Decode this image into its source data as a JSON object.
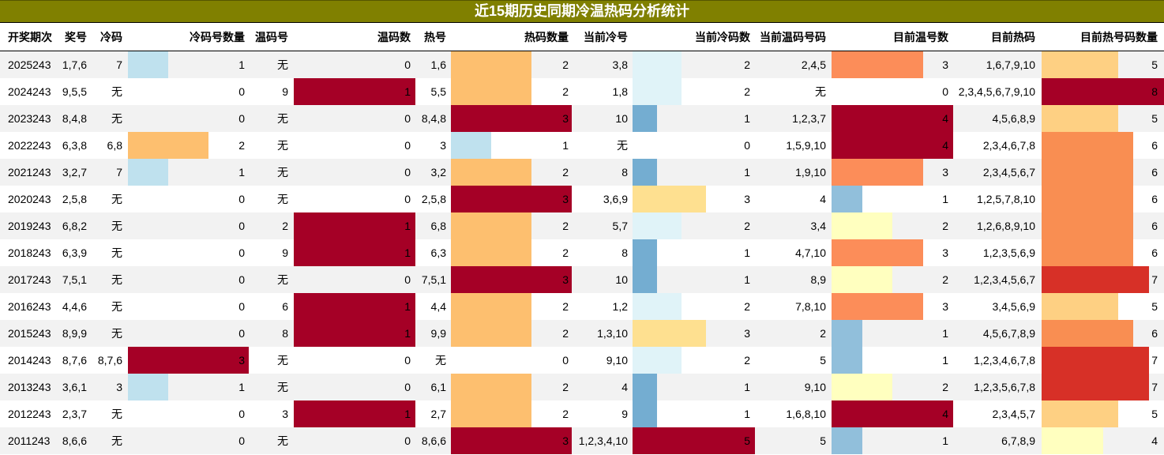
{
  "title": "近15期历史同期冷温热码分析统计",
  "headers": [
    "开奖期次",
    "奖号",
    "冷码",
    "冷码号数量",
    "温码号",
    "温码数",
    "热号",
    "热码数量",
    "当前冷号",
    "当前冷码数",
    "当前温码号码",
    "目前温号数",
    "目前热码",
    "目前热号码数量"
  ],
  "colors": {
    "title_bg": "#808000",
    "cold": [
      "#ffffff",
      "#bfe1ee",
      "#fdbf6f",
      "#a50026"
    ],
    "warm": [
      "#ffffff",
      "#a50026"
    ],
    "hot": [
      "#ffffff",
      "#bfe1ee",
      "#fdbf6f",
      "#a50026"
    ],
    "cur_cold": [
      "#ffffff",
      "#74add1",
      "#e0f3f8",
      "#fee090",
      "#ffffbf",
      "#a50026"
    ],
    "cur_warm": [
      "#ffffff",
      "#91bfdb",
      "#ffffbf",
      "#fc8d59",
      "#a50026"
    ],
    "cur_hot": [
      "#ffffff",
      "#ffffff",
      "#ffffff",
      "#ffffff",
      "#ffffbf",
      "#fed083",
      "#f98e52",
      "#d73027",
      "#a50026"
    ]
  },
  "rows": [
    {
      "period": "2025243",
      "nums": "1,7,6",
      "cold": "7",
      "cold_n": "1",
      "warm": "无",
      "warm_n": "0",
      "hot": "1,6",
      "hot_n": "2",
      "cur_cold": "3,8",
      "cur_cold_n": "2",
      "cur_warm": "2,4,5",
      "cur_warm_n": "3",
      "cur_hot": "1,6,7,9,10",
      "cur_hot_n": "5"
    },
    {
      "period": "2024243",
      "nums": "9,5,5",
      "cold": "无",
      "cold_n": "0",
      "warm": "9",
      "warm_n": "1",
      "hot": "5,5",
      "hot_n": "2",
      "cur_cold": "1,8",
      "cur_cold_n": "2",
      "cur_warm": "无",
      "cur_warm_n": "0",
      "cur_hot": "2,3,4,5,6,7,9,10",
      "cur_hot_n": "8"
    },
    {
      "period": "2023243",
      "nums": "8,4,8",
      "cold": "无",
      "cold_n": "0",
      "warm": "无",
      "warm_n": "0",
      "hot": "8,4,8",
      "hot_n": "3",
      "cur_cold": "10",
      "cur_cold_n": "1",
      "cur_warm": "1,2,3,7",
      "cur_warm_n": "4",
      "cur_hot": "4,5,6,8,9",
      "cur_hot_n": "5"
    },
    {
      "period": "2022243",
      "nums": "6,3,8",
      "cold": "6,8",
      "cold_n": "2",
      "warm": "无",
      "warm_n": "0",
      "hot": "3",
      "hot_n": "1",
      "cur_cold": "无",
      "cur_cold_n": "0",
      "cur_warm": "1,5,9,10",
      "cur_warm_n": "4",
      "cur_hot": "2,3,4,6,7,8",
      "cur_hot_n": "6"
    },
    {
      "period": "2021243",
      "nums": "3,2,7",
      "cold": "7",
      "cold_n": "1",
      "warm": "无",
      "warm_n": "0",
      "hot": "3,2",
      "hot_n": "2",
      "cur_cold": "8",
      "cur_cold_n": "1",
      "cur_warm": "1,9,10",
      "cur_warm_n": "3",
      "cur_hot": "2,3,4,5,6,7",
      "cur_hot_n": "6"
    },
    {
      "period": "2020243",
      "nums": "2,5,8",
      "cold": "无",
      "cold_n": "0",
      "warm": "无",
      "warm_n": "0",
      "hot": "2,5,8",
      "hot_n": "3",
      "cur_cold": "3,6,9",
      "cur_cold_n": "3",
      "cur_warm": "4",
      "cur_warm_n": "1",
      "cur_hot": "1,2,5,7,8,10",
      "cur_hot_n": "6"
    },
    {
      "period": "2019243",
      "nums": "6,8,2",
      "cold": "无",
      "cold_n": "0",
      "warm": "2",
      "warm_n": "1",
      "hot": "6,8",
      "hot_n": "2",
      "cur_cold": "5,7",
      "cur_cold_n": "2",
      "cur_warm": "3,4",
      "cur_warm_n": "2",
      "cur_hot": "1,2,6,8,9,10",
      "cur_hot_n": "6"
    },
    {
      "period": "2018243",
      "nums": "6,3,9",
      "cold": "无",
      "cold_n": "0",
      "warm": "9",
      "warm_n": "1",
      "hot": "6,3",
      "hot_n": "2",
      "cur_cold": "8",
      "cur_cold_n": "1",
      "cur_warm": "4,7,10",
      "cur_warm_n": "3",
      "cur_hot": "1,2,3,5,6,9",
      "cur_hot_n": "6"
    },
    {
      "period": "2017243",
      "nums": "7,5,1",
      "cold": "无",
      "cold_n": "0",
      "warm": "无",
      "warm_n": "0",
      "hot": "7,5,1",
      "hot_n": "3",
      "cur_cold": "10",
      "cur_cold_n": "1",
      "cur_warm": "8,9",
      "cur_warm_n": "2",
      "cur_hot": "1,2,3,4,5,6,7",
      "cur_hot_n": "7"
    },
    {
      "period": "2016243",
      "nums": "4,4,6",
      "cold": "无",
      "cold_n": "0",
      "warm": "6",
      "warm_n": "1",
      "hot": "4,4",
      "hot_n": "2",
      "cur_cold": "1,2",
      "cur_cold_n": "2",
      "cur_warm": "7,8,10",
      "cur_warm_n": "3",
      "cur_hot": "3,4,5,6,9",
      "cur_hot_n": "5"
    },
    {
      "period": "2015243",
      "nums": "8,9,9",
      "cold": "无",
      "cold_n": "0",
      "warm": "8",
      "warm_n": "1",
      "hot": "9,9",
      "hot_n": "2",
      "cur_cold": "1,3,10",
      "cur_cold_n": "3",
      "cur_warm": "2",
      "cur_warm_n": "1",
      "cur_hot": "4,5,6,7,8,9",
      "cur_hot_n": "6"
    },
    {
      "period": "2014243",
      "nums": "8,7,6",
      "cold": "8,7,6",
      "cold_n": "3",
      "warm": "无",
      "warm_n": "0",
      "hot": "无",
      "hot_n": "0",
      "cur_cold": "9,10",
      "cur_cold_n": "2",
      "cur_warm": "5",
      "cur_warm_n": "1",
      "cur_hot": "1,2,3,4,6,7,8",
      "cur_hot_n": "7"
    },
    {
      "period": "2013243",
      "nums": "3,6,1",
      "cold": "3",
      "cold_n": "1",
      "warm": "无",
      "warm_n": "0",
      "hot": "6,1",
      "hot_n": "2",
      "cur_cold": "4",
      "cur_cold_n": "1",
      "cur_warm": "9,10",
      "cur_warm_n": "2",
      "cur_hot": "1,2,3,5,6,7,8",
      "cur_hot_n": "7"
    },
    {
      "period": "2012243",
      "nums": "2,3,7",
      "cold": "无",
      "cold_n": "0",
      "warm": "3",
      "warm_n": "1",
      "hot": "2,7",
      "hot_n": "2",
      "cur_cold": "9",
      "cur_cold_n": "1",
      "cur_warm": "1,6,8,10",
      "cur_warm_n": "4",
      "cur_hot": "2,3,4,5,7",
      "cur_hot_n": "5"
    },
    {
      "period": "2011243",
      "nums": "8,6,6",
      "cold": "无",
      "cold_n": "0",
      "warm": "无",
      "warm_n": "0",
      "hot": "8,6,6",
      "hot_n": "3",
      "cur_cold": "1,2,3,4,10",
      "cur_cold_n": "5",
      "cur_warm": "5",
      "cur_warm_n": "1",
      "cur_hot": "6,7,8,9",
      "cur_hot_n": "4"
    }
  ]
}
